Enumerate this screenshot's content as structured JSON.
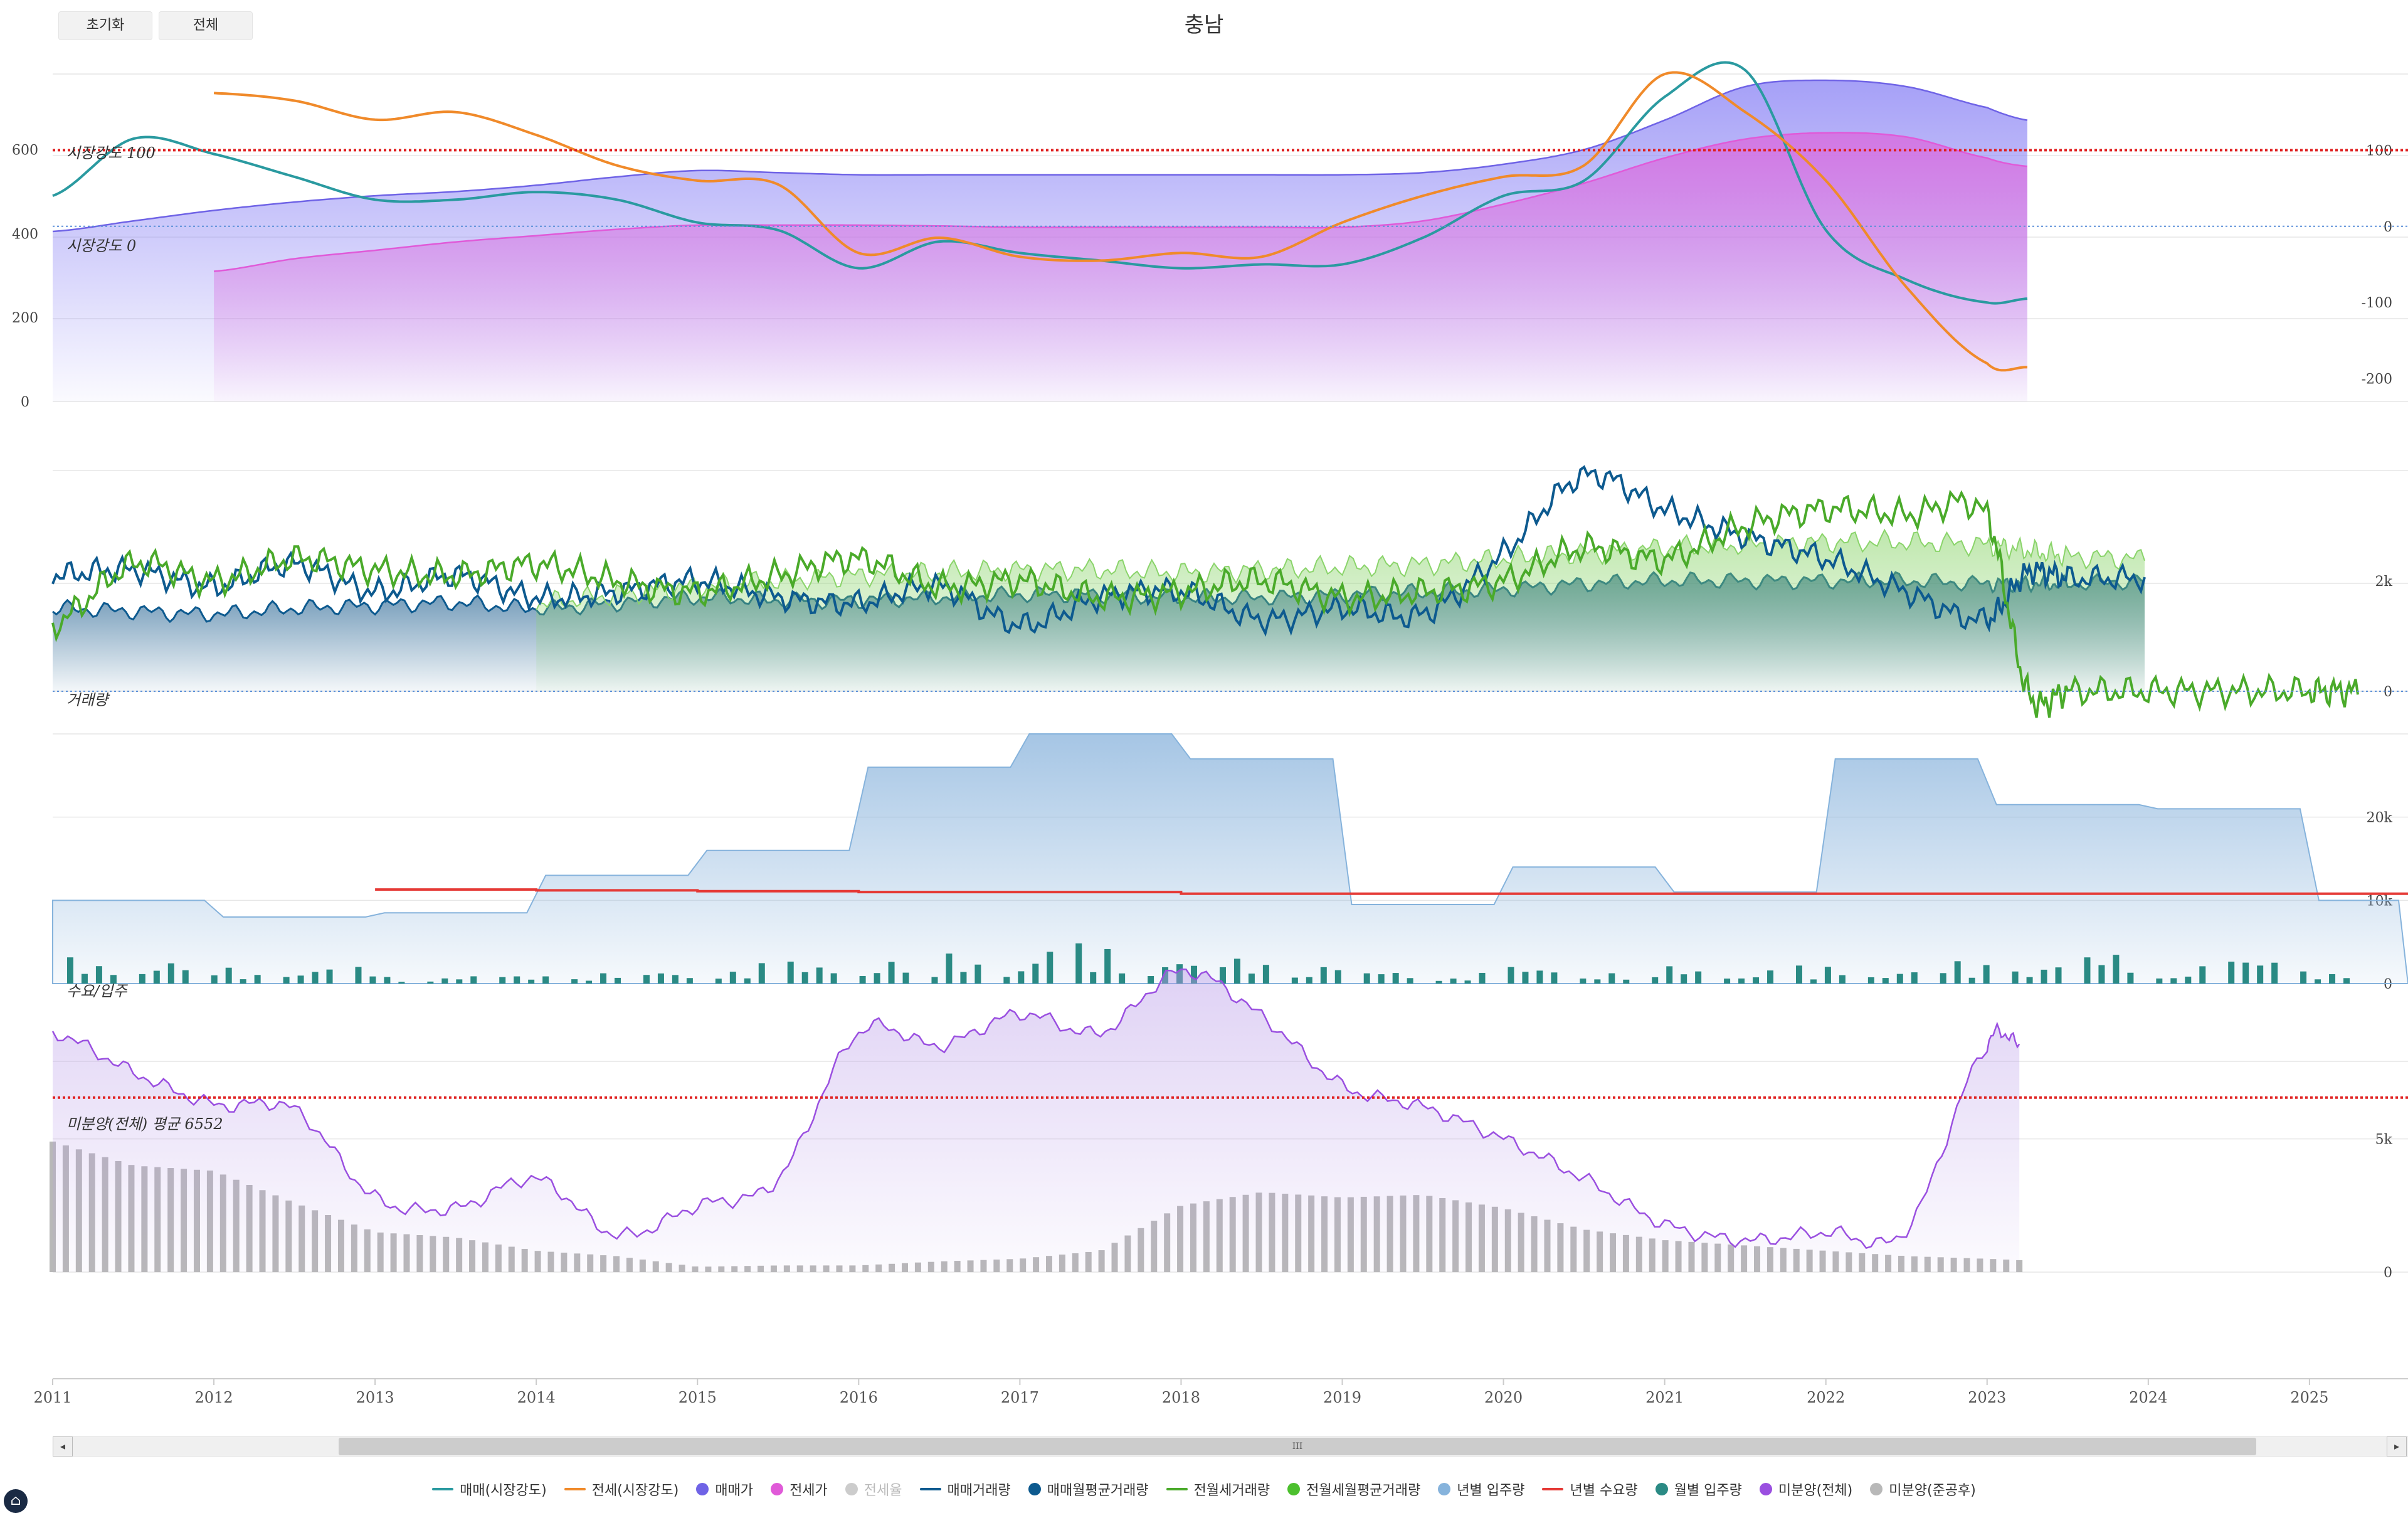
{
  "toolbar": {
    "reset_label": "초기화",
    "all_label": "전체"
  },
  "chart_title": "충남",
  "scrollbar": {
    "grip": "III",
    "left": "◂",
    "right": "▸"
  },
  "annotations": {
    "strength100": "시장강도 100",
    "strength0": "시장강도 0",
    "volume": "거래량",
    "supply": "수요/입주",
    "unsold_avg": "미분양(전체) 평균 6552"
  },
  "legend": [
    {
      "label": "매매(시장강도)",
      "color": "#2a9aa0",
      "type": "line",
      "muted": false
    },
    {
      "label": "전세(시장강도)",
      "color": "#f08a2a",
      "type": "line",
      "muted": false
    },
    {
      "label": "매매가",
      "color": "#6f63e6",
      "type": "dot",
      "muted": false
    },
    {
      "label": "전세가",
      "color": "#e05ad8",
      "type": "dot",
      "muted": false
    },
    {
      "label": "전세율",
      "color": "#cccccc",
      "type": "dot",
      "muted": true
    },
    {
      "label": "매매거래량",
      "color": "#0d5a8f",
      "type": "line",
      "muted": false
    },
    {
      "label": "매매월평균거래량",
      "color": "#0d5a8f",
      "type": "dot",
      "muted": false
    },
    {
      "label": "전월세거래량",
      "color": "#4aaa2a",
      "type": "line",
      "muted": false
    },
    {
      "label": "전월세월평균거래량",
      "color": "#4cc02e",
      "type": "dot",
      "muted": false
    },
    {
      "label": "년별 입주량",
      "color": "#86b3dc",
      "type": "dot",
      "muted": false
    },
    {
      "label": "년별 수요량",
      "color": "#e53935",
      "type": "line",
      "muted": false
    },
    {
      "label": "월별 입주량",
      "color": "#2a8a84",
      "type": "dot",
      "muted": false
    },
    {
      "label": "미분양(전체)",
      "color": "#9a4fe0",
      "type": "dot",
      "muted": false
    },
    {
      "label": "미분양(준공후)",
      "color": "#b8b8b8",
      "type": "dot",
      "muted": false
    }
  ],
  "chart_data": [
    {
      "type": "area",
      "name": "price-and-market-strength",
      "x": [
        2011,
        2011.5,
        2012,
        2012.5,
        2013,
        2013.5,
        2014,
        2014.5,
        2015,
        2015.5,
        2016,
        2016.5,
        2017,
        2017.5,
        2018,
        2018.5,
        2019,
        2019.5,
        2020,
        2020.5,
        2021,
        2021.5,
        2022,
        2022.5,
        2023,
        2023.25
      ],
      "y_left_ticks": [
        "0",
        "200",
        "400",
        "600"
      ],
      "y_right_ticks": [
        "-200",
        "-100",
        "0",
        "100"
      ],
      "ylim_left": [
        0,
        780
      ],
      "ylim_right": [
        -230,
        200
      ],
      "series": [
        {
          "name": "매매가",
          "axis": "left",
          "values": [
            405,
            430,
            455,
            475,
            490,
            500,
            515,
            535,
            550,
            545,
            540,
            540,
            540,
            540,
            540,
            540,
            540,
            545,
            565,
            600,
            670,
            750,
            765,
            750,
            700,
            670
          ],
          "color": "#6f63e6"
        },
        {
          "name": "전세가",
          "axis": "left",
          "values": [
            null,
            null,
            310,
            340,
            360,
            380,
            395,
            410,
            420,
            420,
            420,
            418,
            415,
            415,
            415,
            415,
            415,
            430,
            470,
            520,
            580,
            625,
            640,
            630,
            580,
            560
          ],
          "color": "#e05ad8"
        },
        {
          "name": "매매(시장강도)",
          "axis": "right",
          "values": [
            40,
            115,
            95,
            65,
            35,
            35,
            45,
            35,
            5,
            -5,
            -55,
            -20,
            -35,
            -45,
            -55,
            -50,
            -50,
            -15,
            40,
            60,
            170,
            205,
            -5,
            -70,
            -100,
            -95
          ],
          "color": "#2a9aa0"
        },
        {
          "name": "전세(시장강도)",
          "axis": "right",
          "values": [
            null,
            null,
            175,
            165,
            140,
            150,
            120,
            80,
            60,
            55,
            -35,
            -15,
            -40,
            -45,
            -35,
            -40,
            5,
            40,
            65,
            80,
            200,
            150,
            60,
            -80,
            -180,
            -185
          ],
          "color": "#f08a2a"
        }
      ],
      "reference_lines": [
        {
          "axis": "right",
          "value": 100,
          "style": "dotted-red"
        },
        {
          "axis": "right",
          "value": 0,
          "style": "dotted-blue"
        }
      ]
    },
    {
      "type": "area",
      "name": "transaction-volume",
      "x": [
        2011,
        2011.5,
        2012,
        2012.5,
        2013,
        2013.5,
        2014,
        2014.5,
        2015,
        2015.5,
        2016,
        2016.5,
        2017,
        2017.5,
        2018,
        2018.5,
        2019,
        2019.5,
        2020,
        2020.5,
        2021,
        2021.5,
        2022,
        2022.5,
        2023,
        2023.25,
        2023.5,
        2024,
        2024.5,
        2025,
        2025.3
      ],
      "y_right_ticks": [
        "0",
        "2k"
      ],
      "ylim": [
        0,
        4000
      ],
      "series": [
        {
          "name": "매매월평균거래량",
          "values": [
            1500,
            1450,
            1400,
            1500,
            1550,
            1600,
            1500,
            1600,
            1700,
            1650,
            1650,
            1700,
            1750,
            1750,
            1700,
            1700,
            1750,
            1800,
            1850,
            1950,
            2000,
            2000,
            2000,
            2000,
            1950,
            1950,
            1950,
            2000,
            null,
            null,
            null
          ],
          "color": "#0d5a8f"
        },
        {
          "name": "전월세월평균거래량",
          "values": [
            null,
            null,
            null,
            null,
            null,
            null,
            1600,
            1750,
            1900,
            2000,
            2100,
            2150,
            2200,
            2200,
            2150,
            2200,
            2250,
            2300,
            2400,
            2500,
            2600,
            2650,
            2700,
            2700,
            2650,
            2550,
            2450,
            2400,
            null,
            null,
            null
          ],
          "color": "#4cc02e"
        },
        {
          "name": "매매거래량",
          "values": [
            2100,
            2200,
            1900,
            2300,
            1800,
            2100,
            1700,
            1800,
            2000,
            1700,
            1600,
            1900,
            1200,
            1700,
            1800,
            1300,
            1500,
            1400,
            2500,
            3900,
            3300,
            2800,
            2400,
            1800,
            1300,
            2150,
            2050,
            2050,
            null,
            null,
            null
          ],
          "color": "#0d5a8f"
        },
        {
          "name": "전월세거래량",
          "values": [
            1200,
            2300,
            2000,
            2400,
            2200,
            2100,
            2300,
            2000,
            1800,
            2100,
            2400,
            1900,
            2000,
            1700,
            1800,
            2000,
            1700,
            1800,
            2000,
            2600,
            2400,
            3000,
            3300,
            3200,
            3200,
            0,
            0,
            0,
            0,
            0,
            0
          ],
          "color": "#4aaa2a"
        }
      ],
      "reference_lines": [
        {
          "value": 0,
          "style": "dotted-blue"
        }
      ]
    },
    {
      "type": "bar",
      "name": "supply-and-demand",
      "years": [
        2011,
        2012,
        2013,
        2014,
        2015,
        2016,
        2017,
        2018,
        2019,
        2020,
        2021,
        2022,
        2023,
        2024,
        2025
      ],
      "y_right_ticks": [
        "0",
        "10k",
        "20k"
      ],
      "ylim": [
        0,
        30000
      ],
      "series": [
        {
          "name": "년별 입주량",
          "values": [
            10000,
            8000,
            8500,
            13000,
            16000,
            26000,
            30000,
            27000,
            9500,
            14000,
            11000,
            27000,
            21500,
            21000,
            10000
          ],
          "color": "#86b3dc"
        },
        {
          "name": "년별 수요량",
          "values": [
            null,
            null,
            11300,
            11200,
            11100,
            11000,
            11000,
            10800,
            10800,
            10800,
            10800,
            10800,
            10800,
            10800,
            10800
          ],
          "color": "#e53935"
        },
        {
          "name": "월별 입주량",
          "values": [
            3000,
            2000,
            1000,
            1500,
            2500,
            3500,
            4500,
            3000,
            1500,
            2000,
            2000,
            2500,
            3500,
            3000,
            2500
          ],
          "color": "#2a8a84"
        }
      ]
    },
    {
      "type": "bar",
      "name": "unsold-inventory",
      "x": [
        2011,
        2011.5,
        2012,
        2012.5,
        2013,
        2013.5,
        2014,
        2014.5,
        2015,
        2015.5,
        2016,
        2016.5,
        2017,
        2017.5,
        2018,
        2018.5,
        2019,
        2019.5,
        2020,
        2020.5,
        2021,
        2021.5,
        2022,
        2022.5,
        2023,
        2023.2
      ],
      "y_right_ticks": [
        "0",
        "5k"
      ],
      "ylim": [
        0,
        10500
      ],
      "series": [
        {
          "name": "미분양(전체)",
          "values": [
            9000,
            7500,
            6300,
            6100,
            2800,
            2400,
            3500,
            1400,
            2500,
            3500,
            9000,
            8500,
            9700,
            9000,
            11300,
            9600,
            7000,
            6200,
            5000,
            3500,
            1800,
            1200,
            1500,
            1600,
            8500,
            8600
          ],
          "color": "#9a4fe0"
        },
        {
          "name": "미분양(준공후)",
          "values": [
            4900,
            4000,
            3800,
            2600,
            1500,
            1300,
            800,
            600,
            200,
            250,
            250,
            400,
            500,
            800,
            2500,
            3000,
            2800,
            2900,
            2400,
            1600,
            1200,
            1000,
            800,
            600,
            500,
            450
          ],
          "color": "#b8b8b8"
        }
      ],
      "reference_lines": [
        {
          "value": 6552,
          "style": "dotted-red"
        }
      ]
    }
  ],
  "x_axis": {
    "ticks": [
      "2011",
      "2012",
      "2013",
      "2014",
      "2015",
      "2016",
      "2017",
      "2018",
      "2019",
      "2020",
      "2021",
      "2022",
      "2023",
      "2024",
      "2025"
    ],
    "xlim": [
      2011,
      2025.3
    ]
  }
}
